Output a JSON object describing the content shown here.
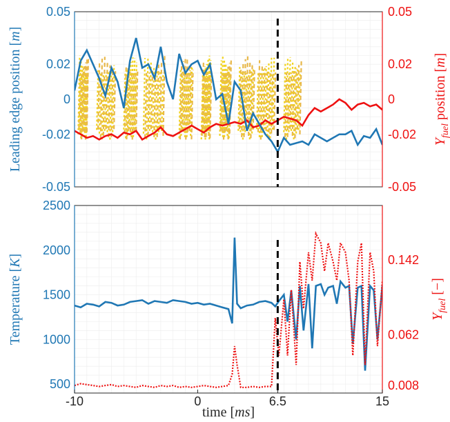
{
  "chart_data": [
    {
      "type": "line",
      "xlim": [
        -10,
        15
      ],
      "ylim_left": [
        -0.05,
        0.05
      ],
      "ylim_right": [
        -0.05,
        0.05
      ],
      "yticks_left": [
        "0.05",
        "0.02",
        "0",
        "-0.02",
        "-0.05"
      ],
      "yticks_right": [
        "0.05",
        "0.02",
        "0",
        "-0.02",
        "-0.05"
      ],
      "ylabel_left": "Leading edge position [m]",
      "ylabel_right": "Y_fuel position [m]",
      "grid": true,
      "vline_x": 6.5,
      "colors": {
        "leading_edge": "#1f77b4",
        "yfuel": "#ee1111",
        "band1": "#e8b84a",
        "band2": "#f2d41f",
        "vline": "#000000",
        "left_axis": "#1f77b4",
        "right_axis": "#ee1111"
      },
      "series": [
        {
          "x": [
            -10,
            -9.5,
            -9,
            -8.5,
            -8,
            -7.5,
            -7,
            -6.5,
            -6,
            -5.5,
            -5,
            -4.5,
            -4,
            -3.5,
            -3,
            -2.5,
            -2,
            -1.5,
            -1,
            -0.5,
            0,
            0.5,
            1,
            1.5,
            2,
            2.5,
            3,
            3.5,
            4,
            4.5,
            5,
            5.5,
            6,
            6.5,
            7,
            7.5,
            8,
            8.5,
            9,
            9.5,
            10,
            10.5,
            11,
            11.5,
            12,
            12.5,
            13,
            13.5,
            14,
            14.5,
            15
          ],
          "y": [
            0.005,
            0.022,
            0.028,
            0.02,
            0.012,
            0.002,
            0.018,
            0.01,
            -0.005,
            0.022,
            0.035,
            0.018,
            0.02,
            0.012,
            0.03,
            0.01,
            0.0,
            0.026,
            0.015,
            0.02,
            0.022,
            0.014,
            0.02,
            0.0,
            0.003,
            -0.014,
            0.01,
            0.005,
            -0.018,
            -0.008,
            -0.014,
            -0.02,
            -0.024,
            -0.03,
            -0.022,
            -0.026,
            -0.025,
            -0.024,
            -0.026,
            -0.02,
            -0.022,
            -0.024,
            -0.022,
            -0.02,
            -0.02,
            -0.018,
            -0.026,
            -0.021,
            -0.022,
            -0.017,
            -0.026
          ]
        },
        {
          "x": [
            -10,
            -9.5,
            -9,
            -8.5,
            -8,
            -7.5,
            -7,
            -6.5,
            -6,
            -5.5,
            -5,
            -4.5,
            -4,
            -3.5,
            -3,
            -2.5,
            -2,
            -1.5,
            -1,
            -0.5,
            0,
            0.5,
            1,
            1.5,
            2,
            2.5,
            3,
            3.5,
            4,
            4.5,
            5,
            5.5,
            6,
            6.5,
            7,
            7.5,
            8,
            8.5,
            9,
            9.5,
            10,
            10.5,
            11,
            11.5,
            12,
            12.5,
            13,
            13.5,
            14,
            14.5,
            15
          ],
          "y": [
            -0.018,
            -0.02,
            -0.022,
            -0.021,
            -0.023,
            -0.021,
            -0.02,
            -0.022,
            -0.019,
            -0.02,
            -0.018,
            -0.023,
            -0.021,
            -0.019,
            -0.016,
            -0.02,
            -0.021,
            -0.019,
            -0.017,
            -0.015,
            -0.017,
            -0.019,
            -0.016,
            -0.014,
            -0.015,
            -0.014,
            -0.013,
            -0.014,
            -0.012,
            -0.016,
            -0.015,
            -0.012,
            -0.014,
            -0.012,
            -0.01,
            -0.011,
            -0.012,
            -0.015,
            -0.009,
            -0.005,
            -0.007,
            -0.005,
            -0.003,
            0.0,
            -0.002,
            -0.006,
            -0.003,
            -0.002,
            -0.004,
            -0.003,
            -0.006
          ]
        }
      ]
    },
    {
      "type": "line",
      "xlim": [
        -10,
        15
      ],
      "ylim_left": [
        400,
        2500
      ],
      "ylim_right": [
        0,
        0.2
      ],
      "yticks_left": [
        "2500",
        "2000",
        "1500",
        "1000",
        "500"
      ],
      "yticks_right": [
        "0.142",
        "0.062",
        "0.008"
      ],
      "xticks": [
        "-10",
        "0",
        "6.5",
        "15"
      ],
      "xlabel": "time [ms]",
      "ylabel_left": "Temperature [K]",
      "ylabel_right": "Y_fuel [−]",
      "grid": true,
      "vline_x": 6.5,
      "colors": {
        "temperature": "#1f77b4",
        "yfuel": "#ee1111"
      },
      "series": [
        {
          "x": [
            -10,
            -9.5,
            -9,
            -8.5,
            -8,
            -7.5,
            -7,
            -6.5,
            -6,
            -5.5,
            -5,
            -4.5,
            -4,
            -3.5,
            -3,
            -2.5,
            -2,
            -1.5,
            -1,
            -0.5,
            0,
            0.5,
            1,
            1.5,
            2,
            2.5,
            2.8,
            3.0,
            3.2,
            3.5,
            4,
            4.5,
            5,
            5.5,
            6,
            6.3,
            6.6,
            7,
            7.3,
            7.6,
            8,
            8.3,
            8.6,
            9,
            9.3,
            9.6,
            10,
            10.3,
            10.6,
            11,
            11.3,
            11.6,
            12,
            12.3,
            12.6,
            13,
            13.3,
            13.6,
            14,
            14.3,
            14.6,
            15
          ],
          "y": [
            1380,
            1360,
            1400,
            1390,
            1370,
            1420,
            1410,
            1380,
            1390,
            1420,
            1430,
            1440,
            1400,
            1430,
            1420,
            1410,
            1440,
            1430,
            1420,
            1400,
            1410,
            1390,
            1400,
            1380,
            1360,
            1340,
            1180,
            2140,
            1400,
            1350,
            1380,
            1390,
            1420,
            1430,
            1410,
            1370,
            1430,
            1500,
            1200,
            1550,
            1000,
            1600,
            1100,
            1620,
            900,
            1600,
            1620,
            1500,
            1580,
            1600,
            1400,
            1650,
            1580,
            1600,
            950,
            1580,
            1600,
            650,
            1600,
            1550,
            1000,
            1600
          ]
        },
        {
          "x": [
            -10,
            -9.5,
            -9,
            -8.5,
            -8,
            -7.5,
            -7,
            -6.5,
            -6,
            -5.5,
            -5,
            -4.5,
            -4,
            -3.5,
            -3,
            -2.5,
            -2,
            -1.5,
            -1,
            -0.5,
            0,
            0.5,
            1,
            1.5,
            2,
            2.5,
            2.8,
            3.0,
            3.2,
            3.5,
            4,
            4.5,
            5,
            5.5,
            6,
            6.3,
            6.6,
            7,
            7.3,
            7.6,
            8,
            8.3,
            8.6,
            9,
            9.3,
            9.6,
            10,
            10.3,
            10.6,
            11,
            11.3,
            11.6,
            12,
            12.3,
            12.6,
            13,
            13.3,
            13.6,
            14,
            14.3,
            14.6,
            15
          ],
          "y": [
            0.008,
            0.01,
            0.009,
            0.008,
            0.007,
            0.008,
            0.009,
            0.007,
            0.008,
            0.007,
            0.006,
            0.008,
            0.007,
            0.006,
            0.008,
            0.007,
            0.008,
            0.006,
            0.007,
            0.006,
            0.007,
            0.008,
            0.007,
            0.006,
            0.007,
            0.008,
            0.02,
            0.05,
            0.03,
            0.006,
            0.006,
            0.007,
            0.006,
            0.007,
            0.007,
            0.08,
            0.04,
            0.1,
            0.04,
            0.11,
            0.03,
            0.14,
            0.09,
            0.15,
            0.12,
            0.17,
            0.16,
            0.13,
            0.16,
            0.14,
            0.12,
            0.16,
            0.15,
            0.12,
            0.04,
            0.14,
            0.16,
            0.03,
            0.15,
            0.13,
            0.05,
            0.12
          ]
        }
      ]
    }
  ]
}
